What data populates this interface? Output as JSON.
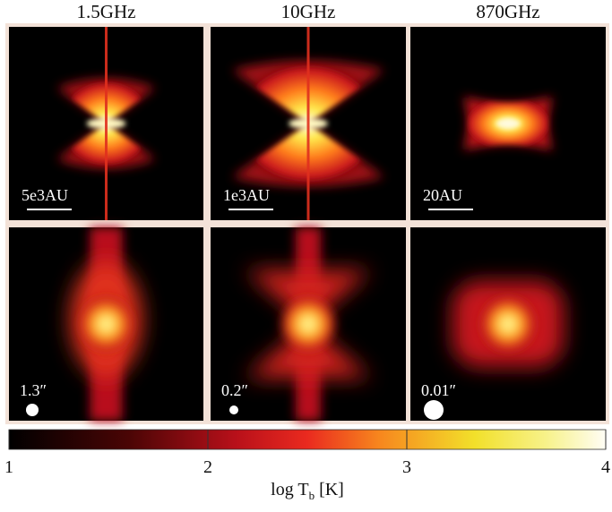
{
  "columns": [
    {
      "title": "1.5GHz",
      "scale_bar": "5e3AU",
      "beam": "1.3″"
    },
    {
      "title": "10GHz",
      "scale_bar": "1e3AU",
      "beam": "0.2″"
    },
    {
      "title": "870GHz",
      "scale_bar": "20AU",
      "beam": "0.01″"
    }
  ],
  "colorbar": {
    "label": "log T",
    "label_sub": "b",
    "label_unit": "[K]",
    "lim": [
      1,
      4
    ],
    "ticks": [
      1,
      2,
      3,
      4
    ]
  }
}
